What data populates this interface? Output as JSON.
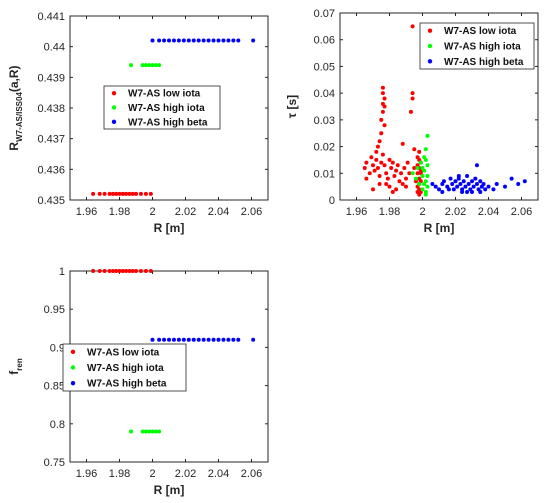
{
  "chart_data": [
    {
      "type": "scatter",
      "ylabel": {
        "main": "R",
        "sub": "W7-AS/ISS04",
        "tail": "(a,R)"
      },
      "xlabel": "R [m]",
      "xlim": [
        1.95,
        2.07
      ],
      "ylim": [
        0.435,
        0.441
      ],
      "xticks": [
        "1.96",
        "1.98",
        "2",
        "2.02",
        "2.04",
        "2.06"
      ],
      "yticks": [
        "0.435",
        "0.436",
        "0.437",
        "0.438",
        "0.439",
        "0.44",
        "0.441"
      ],
      "legend_position": "middle-left",
      "series": [
        {
          "name": "W7-AS low iota",
          "color": "#ff0000",
          "points": [
            [
              1.964,
              0.4352
            ],
            [
              1.968,
              0.4352
            ],
            [
              1.971,
              0.4352
            ],
            [
              1.974,
              0.4352
            ],
            [
              1.976,
              0.4352
            ],
            [
              1.978,
              0.4352
            ],
            [
              1.98,
              0.4352
            ],
            [
              1.982,
              0.4352
            ],
            [
              1.984,
              0.4352
            ],
            [
              1.986,
              0.4352
            ],
            [
              1.988,
              0.4352
            ],
            [
              1.99,
              0.4352
            ],
            [
              1.993,
              0.4352
            ],
            [
              1.996,
              0.4352
            ],
            [
              1.999,
              0.4352
            ]
          ]
        },
        {
          "name": "W7-AS high iota",
          "color": "#00ff00",
          "points": [
            [
              1.987,
              0.4394
            ],
            [
              1.994,
              0.4394
            ],
            [
              1.996,
              0.4394
            ],
            [
              1.998,
              0.4394
            ],
            [
              2.0,
              0.4394
            ],
            [
              2.002,
              0.4394
            ],
            [
              2.004,
              0.4394
            ]
          ]
        },
        {
          "name": "W7-AS high beta",
          "color": "#0000ff",
          "points": [
            [
              2.0,
              0.4402
            ],
            [
              2.004,
              0.4402
            ],
            [
              2.007,
              0.4402
            ],
            [
              2.01,
              0.4402
            ],
            [
              2.013,
              0.4402
            ],
            [
              2.016,
              0.4402
            ],
            [
              2.019,
              0.4402
            ],
            [
              2.022,
              0.4402
            ],
            [
              2.025,
              0.4402
            ],
            [
              2.028,
              0.4402
            ],
            [
              2.031,
              0.4402
            ],
            [
              2.034,
              0.4402
            ],
            [
              2.037,
              0.4402
            ],
            [
              2.04,
              0.4402
            ],
            [
              2.043,
              0.4402
            ],
            [
              2.046,
              0.4402
            ],
            [
              2.049,
              0.4402
            ],
            [
              2.052,
              0.4402
            ],
            [
              2.061,
              0.4402
            ]
          ]
        }
      ]
    },
    {
      "type": "scatter",
      "ylabel": {
        "main": "τ [s]",
        "sub": "",
        "tail": ""
      },
      "xlabel": "R [m]",
      "xlim": [
        1.95,
        2.07
      ],
      "ylim": [
        0,
        0.07
      ],
      "xticks": [
        "1.96",
        "1.98",
        "2",
        "2.02",
        "2.04",
        "2.06"
      ],
      "yticks": [
        "0",
        "0.01",
        "0.02",
        "0.03",
        "0.04",
        "0.05",
        "0.06",
        "0.07"
      ],
      "legend_position": "top-right",
      "series": [
        {
          "name": "W7-AS low iota",
          "color": "#ff0000",
          "points": [
            [
              1.965,
              0.012
            ],
            [
              1.966,
              0.014
            ],
            [
              1.968,
              0.01
            ],
            [
              1.969,
              0.016
            ],
            [
              1.97,
              0.013
            ],
            [
              1.971,
              0.011
            ],
            [
              1.972,
              0.015
            ],
            [
              1.972,
              0.018
            ],
            [
              1.973,
              0.012
            ],
            [
              1.973,
              0.02
            ],
            [
              1.974,
              0.009
            ],
            [
              1.974,
              0.022
            ],
            [
              1.975,
              0.014
            ],
            [
              1.975,
              0.025
            ],
            [
              1.975,
              0.03
            ],
            [
              1.976,
              0.033
            ],
            [
              1.976,
              0.036
            ],
            [
              1.976,
              0.04
            ],
            [
              1.976,
              0.042
            ],
            [
              1.977,
              0.038
            ],
            [
              1.977,
              0.035
            ],
            [
              1.977,
              0.028
            ],
            [
              1.976,
              0.017
            ],
            [
              1.977,
              0.013
            ],
            [
              1.978,
              0.01
            ],
            [
              1.978,
              0.006
            ],
            [
              1.979,
              0.008
            ],
            [
              1.98,
              0.015
            ],
            [
              1.98,
              0.005
            ],
            [
              1.981,
              0.012
            ],
            [
              1.982,
              0.014
            ],
            [
              1.983,
              0.009
            ],
            [
              1.984,
              0.004
            ],
            [
              1.984,
              0.011
            ],
            [
              1.985,
              0.013
            ],
            [
              1.986,
              0.007
            ],
            [
              1.987,
              0.01
            ],
            [
              1.988,
              0.021
            ],
            [
              1.988,
              0.006
            ],
            [
              1.989,
              0.012
            ],
            [
              1.99,
              0.008
            ],
            [
              1.991,
              0.014
            ],
            [
              1.992,
              0.01
            ],
            [
              1.993,
              0.033
            ],
            [
              1.994,
              0.038
            ],
            [
              1.994,
              0.04
            ],
            [
              1.994,
              0.065
            ],
            [
              1.995,
              0.019
            ],
            [
              1.995,
              0.012
            ],
            [
              1.996,
              0.007
            ],
            [
              1.997,
              0.005
            ],
            [
              1.997,
              0.01
            ],
            [
              1.997,
              0.013
            ],
            [
              1.997,
              0.016
            ],
            [
              1.998,
              0.012
            ],
            [
              1.998,
              0.008
            ],
            [
              1.998,
              0.004
            ],
            [
              1.998,
              0.002
            ],
            [
              1.997,
              0.003
            ],
            [
              1.998,
              0.006
            ],
            [
              1.999,
              0.01
            ],
            [
              1.998,
              0.015
            ],
            [
              1.998,
              0.018
            ],
            [
              1.999,
              0.003
            ],
            [
              1.999,
              0.007
            ],
            [
              1.999,
              0.011
            ],
            [
              1.999,
              0.014
            ],
            [
              1.97,
              0.004
            ],
            [
              1.974,
              0.006
            ],
            [
              1.966,
              0.008
            ],
            [
              1.982,
              0.003
            ],
            [
              1.99,
              0.005
            ]
          ]
        },
        {
          "name": "W7-AS high iota",
          "color": "#00ff00",
          "points": [
            [
              1.994,
              0.01
            ],
            [
              1.996,
              0.008
            ],
            [
              1.997,
              0.012
            ],
            [
              1.998,
              0.006
            ],
            [
              1.999,
              0.014
            ],
            [
              2.0,
              0.004
            ],
            [
              2.0,
              0.009
            ],
            [
              2.001,
              0.016
            ],
            [
              2.001,
              0.011
            ],
            [
              2.002,
              0.003
            ],
            [
              2.002,
              0.007
            ],
            [
              2.002,
              0.019
            ],
            [
              2.003,
              0.013
            ],
            [
              2.003,
              0.024
            ],
            [
              2.003,
              0.005
            ],
            [
              2.003,
              0.009
            ],
            [
              2.002,
              0.002
            ],
            [
              2.001,
              0.006
            ],
            [
              2.0,
              0.012
            ],
            [
              2.002,
              0.015
            ]
          ]
        },
        {
          "name": "W7-AS high beta",
          "color": "#0000ff",
          "points": [
            [
              2.006,
              0.006
            ],
            [
              2.008,
              0.005
            ],
            [
              2.01,
              0.004
            ],
            [
              2.012,
              0.006
            ],
            [
              2.013,
              0.007
            ],
            [
              2.015,
              0.005
            ],
            [
              2.017,
              0.008
            ],
            [
              2.018,
              0.006
            ],
            [
              2.019,
              0.004
            ],
            [
              2.02,
              0.007
            ],
            [
              2.021,
              0.005
            ],
            [
              2.022,
              0.008
            ],
            [
              2.023,
              0.006
            ],
            [
              2.024,
              0.004
            ],
            [
              2.025,
              0.007
            ],
            [
              2.026,
              0.005
            ],
            [
              2.027,
              0.009
            ],
            [
              2.028,
              0.006
            ],
            [
              2.029,
              0.004
            ],
            [
              2.03,
              0.007
            ],
            [
              2.031,
              0.005
            ],
            [
              2.032,
              0.008
            ],
            [
              2.033,
              0.006
            ],
            [
              2.034,
              0.004
            ],
            [
              2.035,
              0.007
            ],
            [
              2.036,
              0.005
            ],
            [
              2.037,
              0.006
            ],
            [
              2.038,
              0.004
            ],
            [
              2.033,
              0.013
            ],
            [
              2.024,
              0.003
            ],
            [
              2.03,
              0.003
            ],
            [
              2.016,
              0.004
            ],
            [
              2.012,
              0.003
            ],
            [
              2.045,
              0.006
            ],
            [
              2.05,
              0.005
            ],
            [
              2.054,
              0.008
            ],
            [
              2.058,
              0.006
            ],
            [
              2.062,
              0.007
            ],
            [
              2.04,
              0.005
            ],
            [
              2.043,
              0.004
            ],
            [
              2.027,
              0.003
            ],
            [
              2.035,
              0.003
            ],
            [
              2.022,
              0.009
            ]
          ]
        }
      ]
    },
    {
      "type": "scatter",
      "ylabel": {
        "main": "f",
        "sub": "ren",
        "tail": ""
      },
      "xlabel": "R [m]",
      "xlim": [
        1.95,
        2.07
      ],
      "ylim": [
        0.75,
        1.0
      ],
      "xticks": [
        "1.96",
        "1.98",
        "2",
        "2.02",
        "2.04",
        "2.06"
      ],
      "yticks": [
        "0.75",
        "0.8",
        "0.85",
        "0.9",
        "0.95",
        "1"
      ],
      "legend_position": "middle-left",
      "series": [
        {
          "name": "W7-AS low iota",
          "color": "#ff0000",
          "points": [
            [
              1.964,
              1.0
            ],
            [
              1.968,
              1.0
            ],
            [
              1.971,
              1.0
            ],
            [
              1.974,
              1.0
            ],
            [
              1.976,
              1.0
            ],
            [
              1.978,
              1.0
            ],
            [
              1.98,
              1.0
            ],
            [
              1.982,
              1.0
            ],
            [
              1.984,
              1.0
            ],
            [
              1.986,
              1.0
            ],
            [
              1.988,
              1.0
            ],
            [
              1.99,
              1.0
            ],
            [
              1.993,
              1.0
            ],
            [
              1.996,
              1.0
            ],
            [
              1.999,
              1.0
            ]
          ]
        },
        {
          "name": "W7-AS high iota",
          "color": "#00ff00",
          "points": [
            [
              1.987,
              0.79
            ],
            [
              1.994,
              0.79
            ],
            [
              1.996,
              0.79
            ],
            [
              1.998,
              0.79
            ],
            [
              2.0,
              0.79
            ],
            [
              2.002,
              0.79
            ],
            [
              2.004,
              0.79
            ]
          ]
        },
        {
          "name": "W7-AS high beta",
          "color": "#0000ff",
          "points": [
            [
              2.0,
              0.91
            ],
            [
              2.004,
              0.91
            ],
            [
              2.007,
              0.91
            ],
            [
              2.01,
              0.91
            ],
            [
              2.013,
              0.91
            ],
            [
              2.016,
              0.91
            ],
            [
              2.019,
              0.91
            ],
            [
              2.022,
              0.91
            ],
            [
              2.025,
              0.91
            ],
            [
              2.028,
              0.91
            ],
            [
              2.031,
              0.91
            ],
            [
              2.034,
              0.91
            ],
            [
              2.037,
              0.91
            ],
            [
              2.04,
              0.91
            ],
            [
              2.043,
              0.91
            ],
            [
              2.046,
              0.91
            ],
            [
              2.049,
              0.91
            ],
            [
              2.052,
              0.91
            ],
            [
              2.061,
              0.91
            ]
          ]
        }
      ]
    }
  ]
}
